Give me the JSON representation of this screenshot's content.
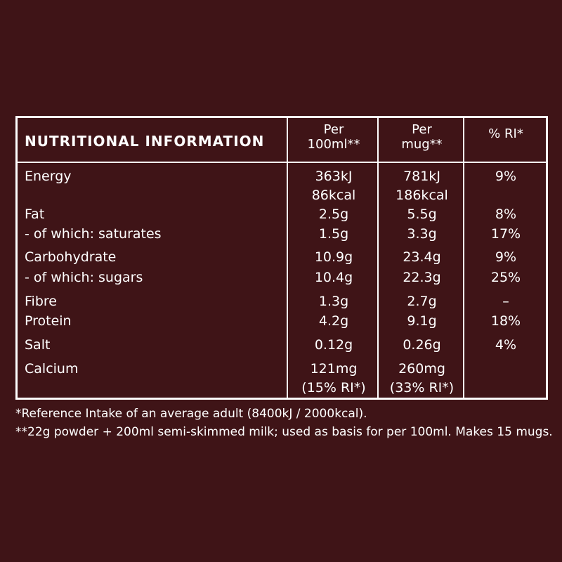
{
  "table": {
    "title": "NUTRITIONAL INFORMATION",
    "headers": {
      "per100_line1": "Per",
      "per100_line2": "100ml**",
      "permug_line1": "Per",
      "permug_line2": "mug**",
      "ri": "% RI*"
    },
    "rows": [
      {
        "label": "Energy",
        "per100": "363kJ",
        "per100_b": "86kcal",
        "permug": "781kJ",
        "permug_b": "186kcal",
        "ri": "9%"
      },
      {
        "label": "Fat",
        "per100": "2.5g",
        "permug": "5.5g",
        "ri": "8%"
      },
      {
        "label": "- of which: saturates",
        "per100": "1.5g",
        "permug": "3.3g",
        "ri": "17%"
      },
      {
        "label": "Carbohydrate",
        "per100": "10.9g",
        "permug": "23.4g",
        "ri": "9%"
      },
      {
        "label": "- of which: sugars",
        "per100": "10.4g",
        "permug": "22.3g",
        "ri": "25%"
      },
      {
        "label": "Fibre",
        "per100": "1.3g",
        "permug": "2.7g",
        "ri": "–"
      },
      {
        "label": "Protein",
        "per100": "4.2g",
        "permug": "9.1g",
        "ri": "18%"
      },
      {
        "label": "Salt",
        "per100": "0.12g",
        "permug": "0.26g",
        "ri": "4%"
      },
      {
        "label": "Calcium",
        "per100": "121mg",
        "per100_b": "(15% RI*)",
        "permug": "260mg",
        "permug_b": "(33% RI*)",
        "ri": ""
      }
    ]
  },
  "footnotes": {
    "line1": "*Reference Intake of an average adult (8400kJ / 2000kcal).",
    "line2": "**22g powder + 200ml semi-skimmed milk; used as basis for per 100ml. Makes 15 mugs."
  },
  "colors": {
    "background": "#3f1417",
    "text": "#ffffff"
  }
}
